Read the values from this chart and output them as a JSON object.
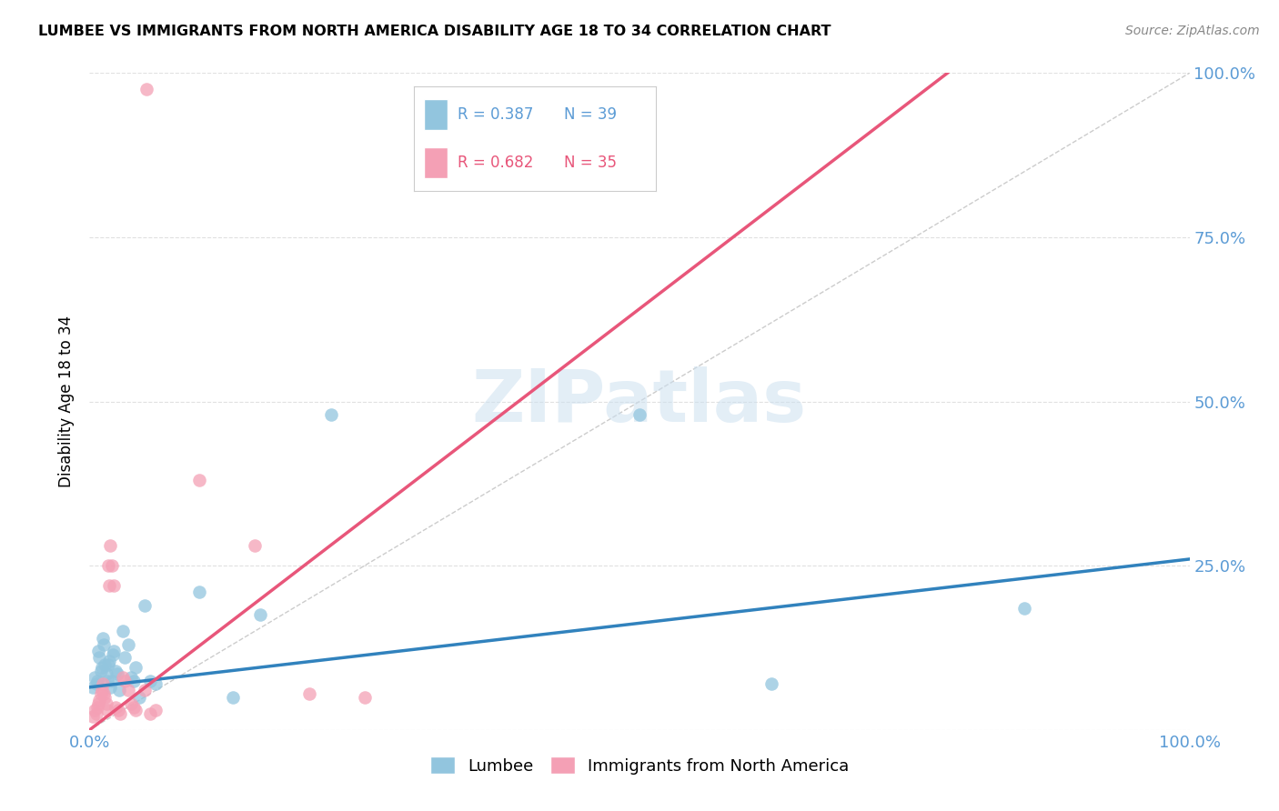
{
  "title": "LUMBEE VS IMMIGRANTS FROM NORTH AMERICA DISABILITY AGE 18 TO 34 CORRELATION CHART",
  "source": "Source: ZipAtlas.com",
  "ylabel": "Disability Age 18 to 34",
  "xlim": [
    0.0,
    1.0
  ],
  "ylim": [
    0.0,
    1.0
  ],
  "lumbee_R": 0.387,
  "lumbee_N": 39,
  "immigrants_R": 0.682,
  "immigrants_N": 35,
  "lumbee_color": "#92c5de",
  "immigrants_color": "#f4a0b5",
  "lumbee_line_color": "#3182bd",
  "immigrants_line_color": "#e8567a",
  "diagonal_color": "#cccccc",
  "lumbee_x": [
    0.003,
    0.005,
    0.006,
    0.007,
    0.008,
    0.009,
    0.01,
    0.011,
    0.012,
    0.013,
    0.014,
    0.015,
    0.016,
    0.017,
    0.018,
    0.019,
    0.02,
    0.021,
    0.022,
    0.024,
    0.025,
    0.027,
    0.03,
    0.032,
    0.035,
    0.038,
    0.04,
    0.042,
    0.045,
    0.05,
    0.055,
    0.06,
    0.1,
    0.13,
    0.155,
    0.22,
    0.5,
    0.62,
    0.85
  ],
  "lumbee_y": [
    0.065,
    0.08,
    0.07,
    0.075,
    0.12,
    0.11,
    0.09,
    0.095,
    0.14,
    0.13,
    0.1,
    0.085,
    0.075,
    0.1,
    0.105,
    0.065,
    0.075,
    0.115,
    0.12,
    0.09,
    0.085,
    0.06,
    0.15,
    0.11,
    0.13,
    0.08,
    0.075,
    0.095,
    0.05,
    0.19,
    0.075,
    0.07,
    0.21,
    0.05,
    0.175,
    0.48,
    0.48,
    0.07,
    0.185
  ],
  "immigrants_x": [
    0.003,
    0.005,
    0.006,
    0.007,
    0.008,
    0.009,
    0.01,
    0.011,
    0.012,
    0.013,
    0.014,
    0.015,
    0.016,
    0.017,
    0.018,
    0.019,
    0.02,
    0.022,
    0.024,
    0.026,
    0.028,
    0.03,
    0.032,
    0.035,
    0.038,
    0.04,
    0.042,
    0.05,
    0.055,
    0.06,
    0.1,
    0.15,
    0.2,
    0.25,
    0.052
  ],
  "immigrants_y": [
    0.02,
    0.03,
    0.025,
    0.035,
    0.04,
    0.045,
    0.055,
    0.06,
    0.07,
    0.055,
    0.05,
    0.04,
    0.03,
    0.25,
    0.22,
    0.28,
    0.25,
    0.22,
    0.035,
    0.03,
    0.025,
    0.08,
    0.075,
    0.06,
    0.04,
    0.035,
    0.03,
    0.06,
    0.025,
    0.03,
    0.38,
    0.28,
    0.055,
    0.05,
    0.975
  ],
  "lumbee_line_x": [
    0.0,
    1.0
  ],
  "lumbee_line_y": [
    0.065,
    0.26
  ],
  "immigrants_line_x": [
    0.0,
    0.78
  ],
  "immigrants_line_y": [
    0.0,
    1.0
  ],
  "background_color": "#ffffff",
  "grid_color": "#e0e0e0"
}
